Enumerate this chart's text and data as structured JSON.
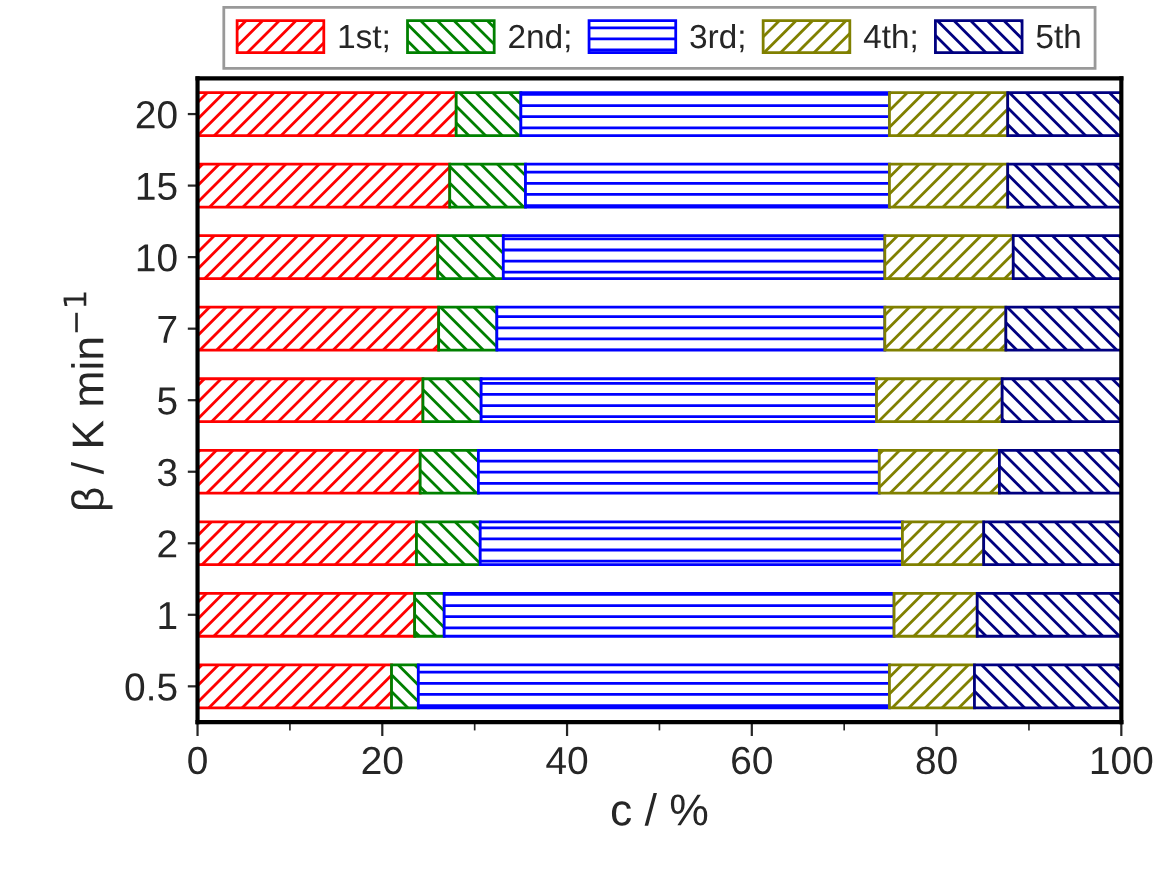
{
  "chart_data": {
    "type": "bar",
    "orientation": "horizontal",
    "stacked": true,
    "xlabel": "c / %",
    "ylabel": "β / K min$^{−1}$",
    "categories": [
      "20",
      "15",
      "10",
      "7",
      "5",
      "3",
      "2",
      "1",
      "0.5"
    ],
    "series": [
      {
        "name": "1st;",
        "color": "#ff0000",
        "values": [
          28.0,
          27.3,
          26.0,
          26.1,
          24.4,
          24.1,
          23.7,
          23.5,
          21.0
        ]
      },
      {
        "name": "2nd;",
        "color": "#008000",
        "values": [
          7.0,
          8.2,
          7.1,
          6.3,
          6.3,
          6.3,
          6.9,
          3.2,
          2.9
        ]
      },
      {
        "name": "3rd;",
        "color": "#0000ff",
        "values": [
          39.9,
          39.4,
          41.3,
          42.0,
          42.8,
          43.4,
          45.7,
          48.7,
          51.0
        ]
      },
      {
        "name": "4th;",
        "color": "#808000",
        "values": [
          12.8,
          12.8,
          13.9,
          13.1,
          13.6,
          13.0,
          8.8,
          9.0,
          9.2
        ]
      },
      {
        "name": "5th",
        "color": "#000080",
        "values": [
          12.3,
          12.3,
          11.7,
          12.5,
          12.9,
          13.2,
          14.9,
          15.6,
          15.9
        ]
      }
    ],
    "xlim": [
      0,
      100
    ],
    "xticks": [
      0,
      20,
      40,
      60,
      80,
      100
    ],
    "grid": false,
    "legend": "top"
  }
}
